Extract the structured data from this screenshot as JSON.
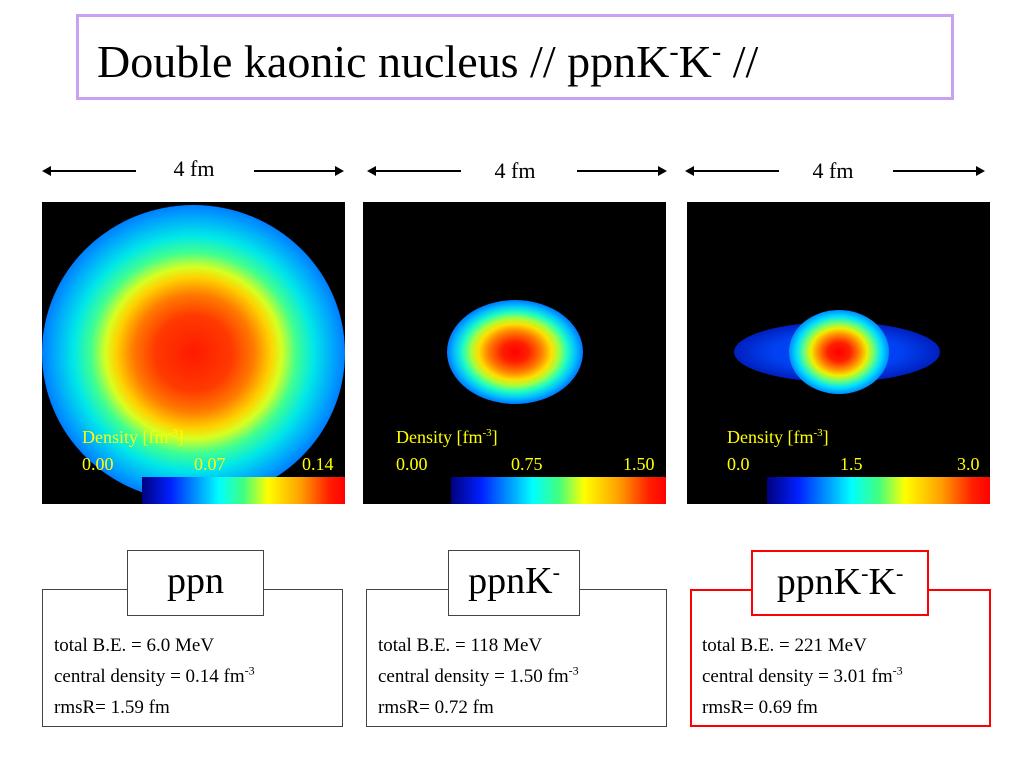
{
  "title": {
    "main": "Double kaonic nucleus  // ppnK",
    "sup1": "-",
    "mid": "K",
    "sup2": "-",
    "end": "  //"
  },
  "scale_label": "4 fm",
  "panels": [
    {
      "density_label": "Density [fm",
      "density_sup": "-3",
      "density_close": "]",
      "ticks": [
        "0.00",
        "0.07",
        "0.14"
      ]
    },
    {
      "density_label": "Density [fm",
      "density_sup": "-3",
      "density_close": "]",
      "ticks": [
        "0.00",
        "0.75",
        "1.50"
      ]
    },
    {
      "density_label": "Density [fm",
      "density_sup": "-3",
      "density_close": "]",
      "ticks": [
        "0.0",
        "1.5",
        "3.0"
      ]
    }
  ],
  "systems": [
    {
      "name": "ppn",
      "name_sup1": "",
      "name_mid": "",
      "name_sup2": "",
      "be": "total B.E. = 6.0 MeV",
      "cd": "central density =  0.14 fm",
      "cd_sup": "-3",
      "rms": "rmsR= 1.59 fm"
    },
    {
      "name": "ppnK",
      "name_sup1": "-",
      "name_mid": "",
      "name_sup2": "",
      "be": "total B.E. = 118 MeV",
      "cd": "central density =  1.50 fm",
      "cd_sup": "-3",
      "rms": "rmsR= 0.72 fm"
    },
    {
      "name": "ppnK",
      "name_sup1": "-",
      "name_mid": "K",
      "name_sup2": "-",
      "be": "total B.E. = 221 MeV",
      "cd": "central density =  3.01 fm",
      "cd_sup": "-3",
      "rms": "rmsR= 0.69 fm"
    }
  ],
  "colors": {
    "title_border": "#c8a2f0",
    "highlight": "#ff0000",
    "legend_text": "#ffff00"
  }
}
